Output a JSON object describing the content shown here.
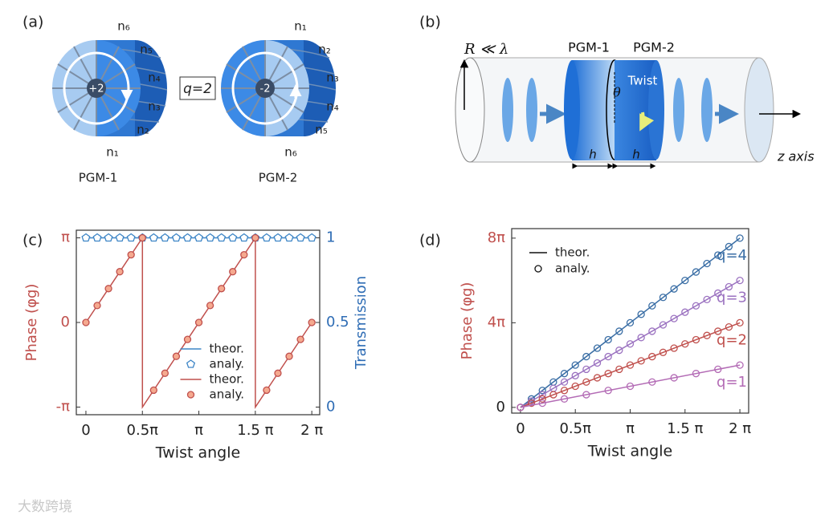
{
  "panels": [
    "(a)",
    "(b)",
    "(c)",
    "(d)"
  ],
  "diagram_a": {
    "pgm1": {
      "name": "PGM-1",
      "charge": "+2",
      "indices": [
        "n₆",
        "n₅",
        "n₄",
        "n₃",
        "n₂",
        "n₁"
      ]
    },
    "pgm2": {
      "name": "PGM-2",
      "charge": "-2",
      "indices": [
        "n₁",
        "n₂",
        "n₃",
        "n₄",
        "n₅",
        "n₆"
      ]
    },
    "q_label": "q=2"
  },
  "diagram_b": {
    "radius_label": "R ≪ λ",
    "pgm1": "PGM-1",
    "pgm2": "PGM-2",
    "twist": "Twist",
    "angle": "θ",
    "thickness1": "h",
    "thickness2": "h",
    "axis": "z axis"
  },
  "watermark": "大数跨境",
  "chart_data": [
    {
      "type": "line",
      "xlabel": "Twist angle",
      "ylabel": "Phase (φg)",
      "y2label": "Transmission",
      "xlim": [
        -0.085,
        2.07
      ],
      "ylim": [
        -1.09,
        1.09
      ],
      "y2lim": [
        -0.045,
        1.045
      ],
      "xticks": [
        0,
        {
          "value": 0.5,
          "label": "0.5π"
        },
        {
          "value": 1,
          "label": "π"
        },
        {
          "value": 1.5,
          "label": "1.5 π"
        },
        {
          "value": 2,
          "label": "2 π"
        }
      ],
      "yticks": [
        {
          "value": -1,
          "label": "-π"
        },
        0,
        {
          "value": 1,
          "label": "π"
        }
      ],
      "y2ticks": [
        0,
        0.5,
        1
      ],
      "ycolor": "#c0504d",
      "y2color": "#2f6db5",
      "legend": "lower center",
      "series": [
        {
          "name": "theor.",
          "color": "#3d85c6",
          "axis": "y2",
          "mode": "line",
          "x": [
            0,
            2
          ],
          "values": [
            1,
            1
          ]
        },
        {
          "name": "analy.",
          "color": "#3d85c6",
          "axis": "y2",
          "mode": "markers",
          "marker": "pentagon",
          "fill": "#ffffff",
          "x": [
            0,
            0.1,
            0.2,
            0.3,
            0.4,
            0.5,
            0.6,
            0.7,
            0.8,
            0.9,
            1,
            1.1,
            1.2,
            1.3,
            1.4,
            1.5,
            1.6,
            1.7,
            1.8,
            1.9,
            2
          ],
          "values": [
            1,
            1,
            1,
            1,
            1,
            1,
            1,
            1,
            1,
            1,
            1,
            1,
            1,
            1,
            1,
            1,
            1,
            1,
            1,
            1,
            1
          ]
        },
        {
          "name": "theor.",
          "color": "#c0504d",
          "mode": "line",
          "x": [
            0,
            0.5,
            0.5,
            1.5,
            1.5,
            2
          ],
          "values": [
            0,
            1,
            -1,
            1,
            -1,
            0
          ]
        },
        {
          "name": "analy.",
          "color": "#c0504d",
          "mode": "markers",
          "marker": "circle",
          "fill": "#f5a98f",
          "x": [
            0,
            0.1,
            0.2,
            0.3,
            0.4,
            0.5,
            0.6,
            0.7,
            0.8,
            0.9,
            1,
            1.1,
            1.2,
            1.3,
            1.4,
            1.5,
            1.6,
            1.7,
            1.8,
            1.9,
            2
          ],
          "values": [
            0,
            0.2,
            0.4,
            0.6,
            0.8,
            1,
            -0.8,
            -0.6,
            -0.4,
            -0.2,
            0,
            0.2,
            0.4,
            0.6,
            0.8,
            1,
            -0.8,
            -0.6,
            -0.4,
            -0.2,
            0
          ]
        }
      ]
    },
    {
      "type": "line",
      "xlabel": "Twist angle",
      "ylabel": "Phase (φg)",
      "xlim": [
        -0.08,
        2.08
      ],
      "ylim": [
        -0.27,
        8.45
      ],
      "xticks": [
        0,
        {
          "value": 0.5,
          "label": "0.5π"
        },
        {
          "value": 1,
          "label": "π"
        },
        {
          "value": 1.5,
          "label": "1.5 π"
        },
        {
          "value": 2,
          "label": "2 π"
        }
      ],
      "yticks": [
        0,
        {
          "value": 4,
          "label": "4π"
        },
        {
          "value": 8,
          "label": "8π"
        }
      ],
      "ycolor": "#c0504d",
      "legend": "upper left",
      "legend_labels": [
        "theor.",
        "analy."
      ],
      "series": [
        {
          "name": "q=4",
          "color": "#3a6ea5",
          "theory_x": [
            0,
            2
          ],
          "theory_values": [
            0,
            8
          ],
          "x": [
            0,
            0.1,
            0.2,
            0.3,
            0.4,
            0.5,
            0.6,
            0.7,
            0.8,
            0.9,
            1,
            1.1,
            1.2,
            1.3,
            1.4,
            1.5,
            1.6,
            1.7,
            1.8,
            1.9,
            2
          ],
          "values": [
            0,
            0.4,
            0.8,
            1.2,
            1.6,
            2,
            2.4,
            2.8,
            3.2,
            3.6,
            4,
            4.4,
            4.8,
            5.2,
            5.6,
            6,
            6.4,
            6.8,
            7.2,
            7.6,
            8
          ]
        },
        {
          "name": "q=3",
          "color": "#9b72c0",
          "theory_x": [
            0,
            2
          ],
          "theory_values": [
            0,
            6
          ],
          "x": [
            0,
            0.1,
            0.2,
            0.3,
            0.4,
            0.5,
            0.6,
            0.7,
            0.8,
            0.9,
            1,
            1.1,
            1.2,
            1.3,
            1.4,
            1.5,
            1.6,
            1.7,
            1.8,
            1.9,
            2
          ],
          "values": [
            0,
            0.3,
            0.6,
            0.9,
            1.2,
            1.5,
            1.8,
            2.1,
            2.4,
            2.7,
            3,
            3.3,
            3.6,
            3.9,
            4.2,
            4.5,
            4.8,
            5.1,
            5.4,
            5.7,
            6
          ]
        },
        {
          "name": "q=2",
          "color": "#c0504d",
          "theory_x": [
            0,
            2
          ],
          "theory_values": [
            0,
            4
          ],
          "x": [
            0,
            0.1,
            0.2,
            0.3,
            0.4,
            0.5,
            0.6,
            0.7,
            0.8,
            0.9,
            1,
            1.1,
            1.2,
            1.3,
            1.4,
            1.5,
            1.6,
            1.7,
            1.8,
            1.9,
            2
          ],
          "values": [
            0,
            0.2,
            0.4,
            0.6,
            0.8,
            1,
            1.2,
            1.4,
            1.6,
            1.8,
            2,
            2.2,
            2.4,
            2.6,
            2.8,
            3,
            3.2,
            3.4,
            3.6,
            3.8,
            4
          ]
        },
        {
          "name": "q=1",
          "color": "#b36bb5",
          "theory_x": [
            0,
            2
          ],
          "theory_values": [
            0,
            2
          ],
          "x": [
            0,
            0.2,
            0.4,
            0.6,
            0.8,
            1,
            1.2,
            1.4,
            1.6,
            1.8,
            2
          ],
          "values": [
            0,
            0.2,
            0.4,
            0.6,
            0.8,
            1,
            1.2,
            1.4,
            1.6,
            1.8,
            2
          ]
        }
      ]
    }
  ]
}
